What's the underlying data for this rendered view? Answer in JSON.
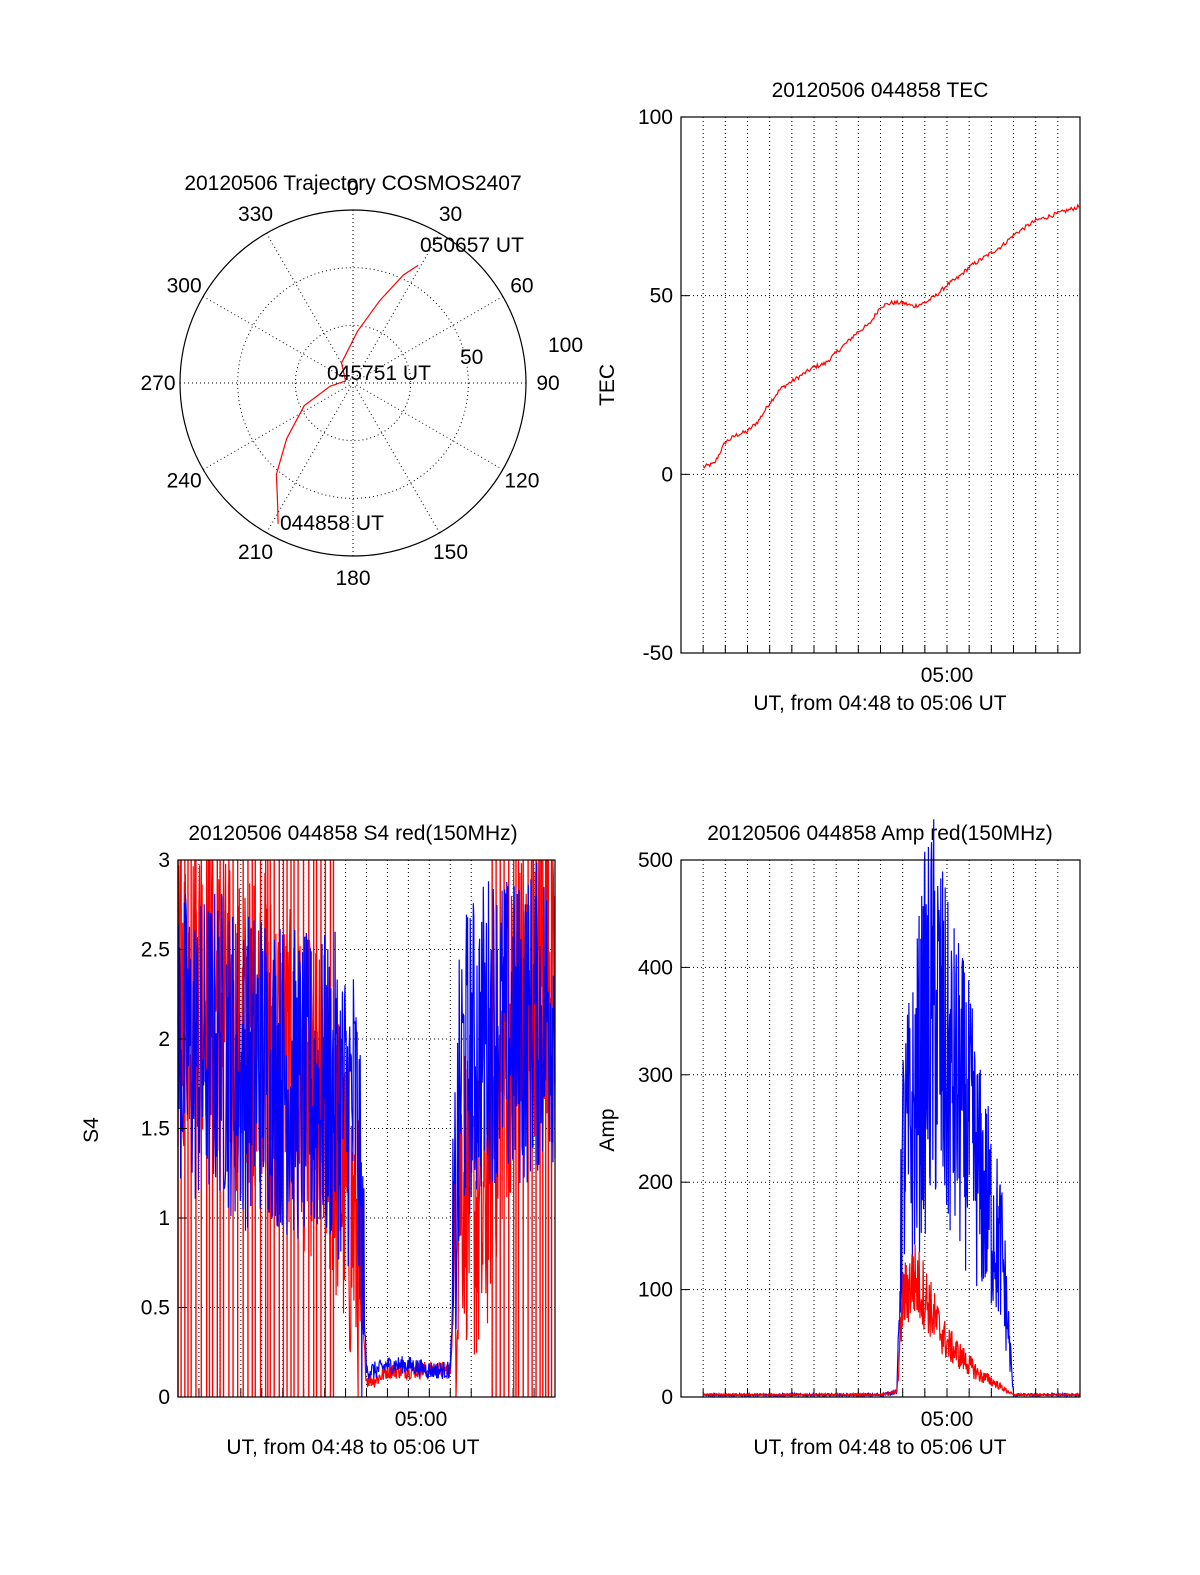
{
  "colors": {
    "red": "#ff0000",
    "blue": "#0000ff",
    "axis": "#000000"
  },
  "chart_data": [
    {
      "id": "trajectory",
      "type": "scatter",
      "subtype": "polar",
      "title": "20120506 Trajectory COSMOS2407",
      "azimuth_labels": [
        "0",
        "30",
        "60",
        "90",
        "120",
        "150",
        "180",
        "210",
        "240",
        "270",
        "300",
        "330"
      ],
      "radial_labels": [
        "50",
        "100"
      ],
      "grid": true,
      "series": [
        {
          "color": "#ff0000",
          "azimuth": [
            208,
            212,
            220,
            230,
            245,
            262,
            285,
            330,
            5,
            18,
            25,
            29
          ],
          "elevation": [
            7,
            16,
            28,
            45,
            62,
            78,
            86,
            78,
            63,
            45,
            28,
            20
          ]
        }
      ],
      "annotations": [
        {
          "text": "050657 UT",
          "azimuth": 30,
          "elevation": 20
        },
        {
          "text": "045751 UT",
          "azimuth": 270,
          "elevation": 86
        },
        {
          "text": "044858 UT",
          "azimuth": 210,
          "elevation": 7
        }
      ]
    },
    {
      "id": "tec",
      "type": "line",
      "title": "20120506 044858 TEC",
      "xlabel": "UT, from 04:48 to 05:06 UT",
      "ylabel": "TEC",
      "xlim": [
        "04:48",
        "05:06"
      ],
      "ylim": [
        -50,
        100
      ],
      "yticks": [
        -50,
        0,
        50,
        100
      ],
      "xtick_labels": [
        "05:00"
      ],
      "grid": true,
      "series": [
        {
          "color": "#ff0000",
          "x": [
            "04:49",
            "04:49:30",
            "04:50",
            "04:50:30",
            "04:51",
            "04:51:30",
            "04:52",
            "04:52:30",
            "04:53",
            "04:53:30",
            "04:54",
            "04:54:30",
            "04:55",
            "04:55:30",
            "04:56",
            "04:56:30",
            "04:57",
            "04:57:30",
            "04:58",
            "04:58:30",
            "04:59",
            "04:59:30",
            "05:00",
            "05:00:30",
            "05:01",
            "05:01:30",
            "05:02",
            "05:02:30",
            "05:03",
            "05:03:30",
            "05:04",
            "05:04:30",
            "05:05",
            "05:05:30",
            "05:06"
          ],
          "values": [
            2,
            3,
            9,
            11,
            12,
            15,
            20,
            24,
            26,
            28,
            30,
            31,
            34,
            37,
            40,
            42,
            47,
            48,
            48,
            47,
            48,
            50,
            53,
            55,
            58,
            60,
            62,
            64,
            67,
            69,
            71,
            72,
            73,
            74,
            75
          ]
        }
      ]
    },
    {
      "id": "s4",
      "type": "line",
      "title": "20120506 044858 S4 red(150MHz)",
      "xlabel": "UT, from 04:48 to 05:06 UT",
      "ylabel": "S4",
      "xlim": [
        "04:48",
        "05:06"
      ],
      "ylim": [
        0,
        3
      ],
      "yticks": [
        0,
        0.5,
        1,
        1.5,
        2,
        2.5,
        3
      ],
      "ytick_labels": [
        "0",
        "0.5",
        "1",
        "1.5",
        "2",
        "2.5",
        "3"
      ],
      "xtick_labels": [
        "05:00"
      ],
      "grid": true,
      "series": [
        {
          "color": "#ff0000",
          "x": [
            "04:48",
            "04:49",
            "04:50",
            "04:51",
            "04:52",
            "04:53",
            "04:54",
            "04:55",
            "04:55:30",
            "04:56",
            "04:56:30",
            "04:57",
            "04:57:30",
            "04:58",
            "04:59",
            "05:00",
            "05:01",
            "05:01:30",
            "05:02",
            "05:02:30",
            "05:03",
            "05:04",
            "05:05",
            "05:06"
          ],
          "values": [
            2.2,
            2.4,
            2.2,
            2.0,
            2.1,
            1.9,
            1.7,
            1.6,
            1.4,
            1.1,
            0.9,
            0.1,
            0.1,
            0.15,
            0.15,
            0.15,
            0.15,
            1.3,
            1.1,
            0.9,
            1.5,
            2.1,
            2.3,
            2.5
          ]
        },
        {
          "color": "#0000ff",
          "x": [
            "04:48",
            "04:49",
            "04:50",
            "04:51",
            "04:52",
            "04:53",
            "04:54",
            "04:55",
            "04:55:30",
            "04:56",
            "04:56:30",
            "04:57",
            "04:57:30",
            "04:58",
            "04:59",
            "05:00",
            "05:01",
            "05:01:30",
            "05:02",
            "05:02:30",
            "05:03",
            "05:04",
            "05:05",
            "05:06"
          ],
          "values": [
            2.0,
            1.9,
            2.0,
            1.8,
            1.9,
            1.8,
            1.7,
            1.7,
            1.7,
            1.6,
            1.6,
            0.15,
            0.15,
            0.18,
            0.18,
            0.15,
            0.15,
            1.8,
            1.9,
            2.0,
            2.1,
            2.0,
            2.1,
            2.2
          ]
        }
      ]
    },
    {
      "id": "amp",
      "type": "line",
      "title": "20120506 044858 Amp red(150MHz)",
      "xlabel": "UT, from 04:48 to 05:06 UT",
      "ylabel": "Amp",
      "xlim": [
        "04:48",
        "05:06"
      ],
      "ylim": [
        0,
        500
      ],
      "yticks": [
        0,
        100,
        200,
        300,
        400,
        500
      ],
      "xtick_labels": [
        "05:00"
      ],
      "grid": true,
      "series": [
        {
          "color": "#ff0000",
          "x": [
            "04:49",
            "04:57",
            "04:57:45",
            "04:58",
            "04:58:30",
            "04:59",
            "04:59:30",
            "05:00",
            "05:00:30",
            "05:01",
            "05:01:30",
            "05:02",
            "05:03",
            "05:06"
          ],
          "values": [
            2,
            2,
            5,
            90,
            110,
            95,
            70,
            50,
            40,
            30,
            20,
            15,
            2,
            2
          ]
        },
        {
          "color": "#0000ff",
          "x": [
            "04:49",
            "04:57",
            "04:57:45",
            "04:58",
            "04:58:30",
            "04:59",
            "04:59:30",
            "05:00",
            "05:00:30",
            "05:01",
            "05:01:30",
            "05:02",
            "05:02:30",
            "05:03",
            "05:06"
          ],
          "values": [
            2,
            2,
            5,
            220,
            260,
            330,
            360,
            300,
            280,
            250,
            200,
            170,
            130,
            2,
            2
          ]
        }
      ]
    }
  ]
}
